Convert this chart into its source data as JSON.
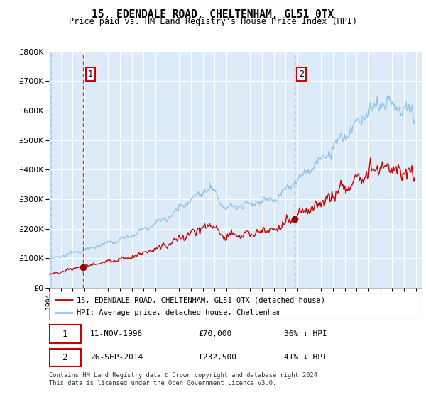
{
  "title": "15, EDENDALE ROAD, CHELTENHAM, GL51 0TX",
  "subtitle": "Price paid vs. HM Land Registry's House Price Index (HPI)",
  "hpi_label": "HPI: Average price, detached house, Cheltenham",
  "property_label": "15, EDENDALE ROAD, CHELTENHAM, GL51 0TX (detached house)",
  "sale1_date": "11-NOV-1996",
  "sale1_price": 70000,
  "sale1_hpi_pct": "36% ↓ HPI",
  "sale2_date": "26-SEP-2014",
  "sale2_price": 232500,
  "sale2_hpi_pct": "41% ↓ HPI",
  "footnote": "Contains HM Land Registry data © Crown copyright and database right 2024.\nThis data is licensed under the Open Government Licence v3.0.",
  "ylim_max": 800000,
  "xmin": 1994,
  "xmax": 2025.5,
  "hpi_color": "#8ec4e8",
  "property_color": "#cc0000",
  "sale_marker_color": "#990000",
  "dashed_line_color": "#cc3333",
  "bg_color": "#ddeaf7",
  "grid_color": "#ffffff",
  "label_box_color": "#cc0000",
  "sale1_year": 1996.87,
  "sale2_year": 2014.73
}
